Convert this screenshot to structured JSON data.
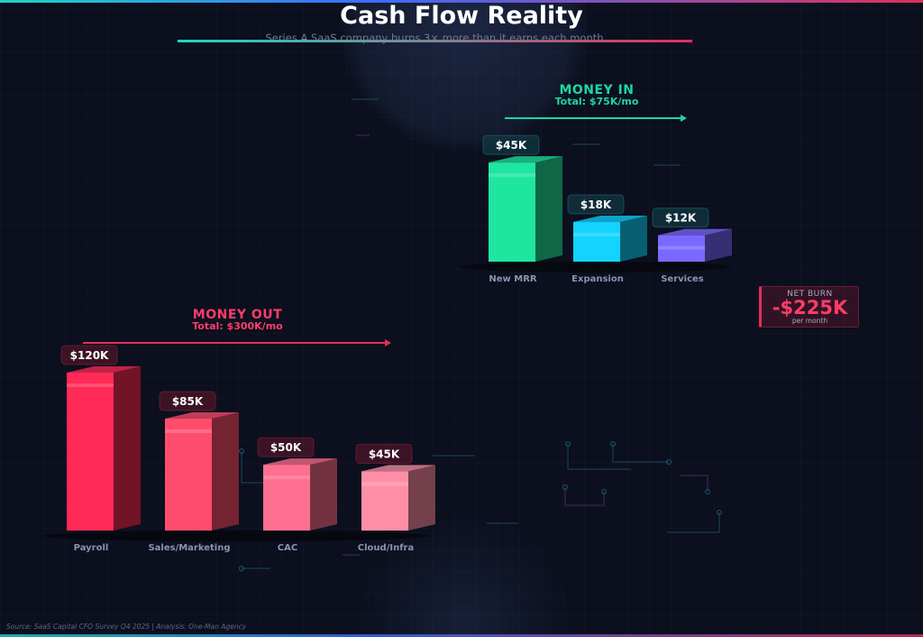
{
  "title": "Cash Flow Reality",
  "subtitle": "Series A SaaS company burns 3× more than it earns each month",
  "net_burn": {
    "label": "NET BURN",
    "value": "-$225K",
    "unit": "per month"
  },
  "footnote": "Source: SaaS Capital CFO Survey Q4 2025 | Analysis: One-Man Agency",
  "colors": {
    "money_in": "#1ed6a0",
    "money_out": "#ff3d68",
    "accent_teal": "#1ed6c2",
    "accent_red": "#e0305a"
  },
  "chart_data": [
    {
      "type": "bar",
      "title": "MONEY IN",
      "subtitle": "Total: $75K/mo",
      "categories": [
        "New MRR",
        "Expansion",
        "Services"
      ],
      "values": [
        45,
        18,
        12
      ],
      "value_labels": [
        "$45K",
        "$18K",
        "$12K"
      ],
      "unit": "$K per month",
      "colors": [
        "#1ee6a0",
        "#12d4ff",
        "#7b68ff"
      ],
      "ylim": [
        0,
        120
      ],
      "grid": false,
      "legend": "none"
    },
    {
      "type": "bar",
      "title": "MONEY OUT",
      "subtitle": "Total: $300K/mo",
      "categories": [
        "Payroll",
        "Sales/Marketing",
        "CAC",
        "Cloud/Infra"
      ],
      "values": [
        120,
        85,
        50,
        45
      ],
      "value_labels": [
        "$120K",
        "$85K",
        "$50K",
        "$45K"
      ],
      "unit": "$K per month",
      "colors": [
        "#ff2a55",
        "#ff4d6e",
        "#ff6f8f",
        "#ff8fa6"
      ],
      "ylim": [
        0,
        120
      ],
      "grid": false,
      "legend": "none"
    }
  ]
}
